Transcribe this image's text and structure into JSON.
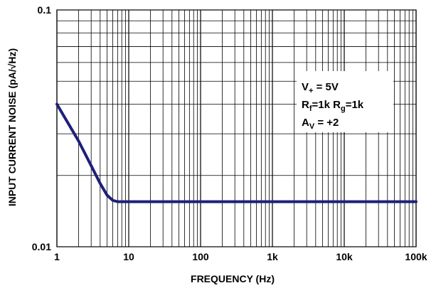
{
  "chart_data": {
    "type": "line",
    "title": "",
    "xlabel": "FREQUENCY (Hz)",
    "ylabel": "INPUT CURRENT NOISE (pA/√Hz)",
    "x_scale": "log",
    "y_scale": "log",
    "xlim": [
      1,
      100000
    ],
    "ylim": [
      0.01,
      0.1
    ],
    "grid": true,
    "x_ticks": [
      {
        "value": 1,
        "label": "1"
      },
      {
        "value": 10,
        "label": "10"
      },
      {
        "value": 100,
        "label": "100"
      },
      {
        "value": 1000,
        "label": "1k"
      },
      {
        "value": 10000,
        "label": "10k"
      },
      {
        "value": 100000,
        "label": "100k"
      }
    ],
    "y_ticks": [
      {
        "value": 0.01,
        "label": "0.01"
      },
      {
        "value": 0.1,
        "label": "0.1"
      }
    ],
    "series": [
      {
        "color": "#1f1f7a",
        "x": [
          1,
          2,
          3,
          4,
          5,
          6,
          7,
          8,
          10,
          100,
          1000,
          10000,
          100000
        ],
        "y": [
          0.04,
          0.028,
          0.022,
          0.0185,
          0.0165,
          0.0157,
          0.0155,
          0.0155,
          0.0155,
          0.0155,
          0.0155,
          0.0155,
          0.0155
        ]
      }
    ],
    "annotation": {
      "line1": {
        "main": "V",
        "sub": "+",
        "rest": " = 5V"
      },
      "line2": {
        "a": "R",
        "a_sub": "f",
        "b": "=1k R",
        "b_sub": "g",
        "c": "=1k"
      },
      "line3": {
        "a": "A",
        "a_sub": "V",
        "b": " = +2"
      }
    }
  }
}
